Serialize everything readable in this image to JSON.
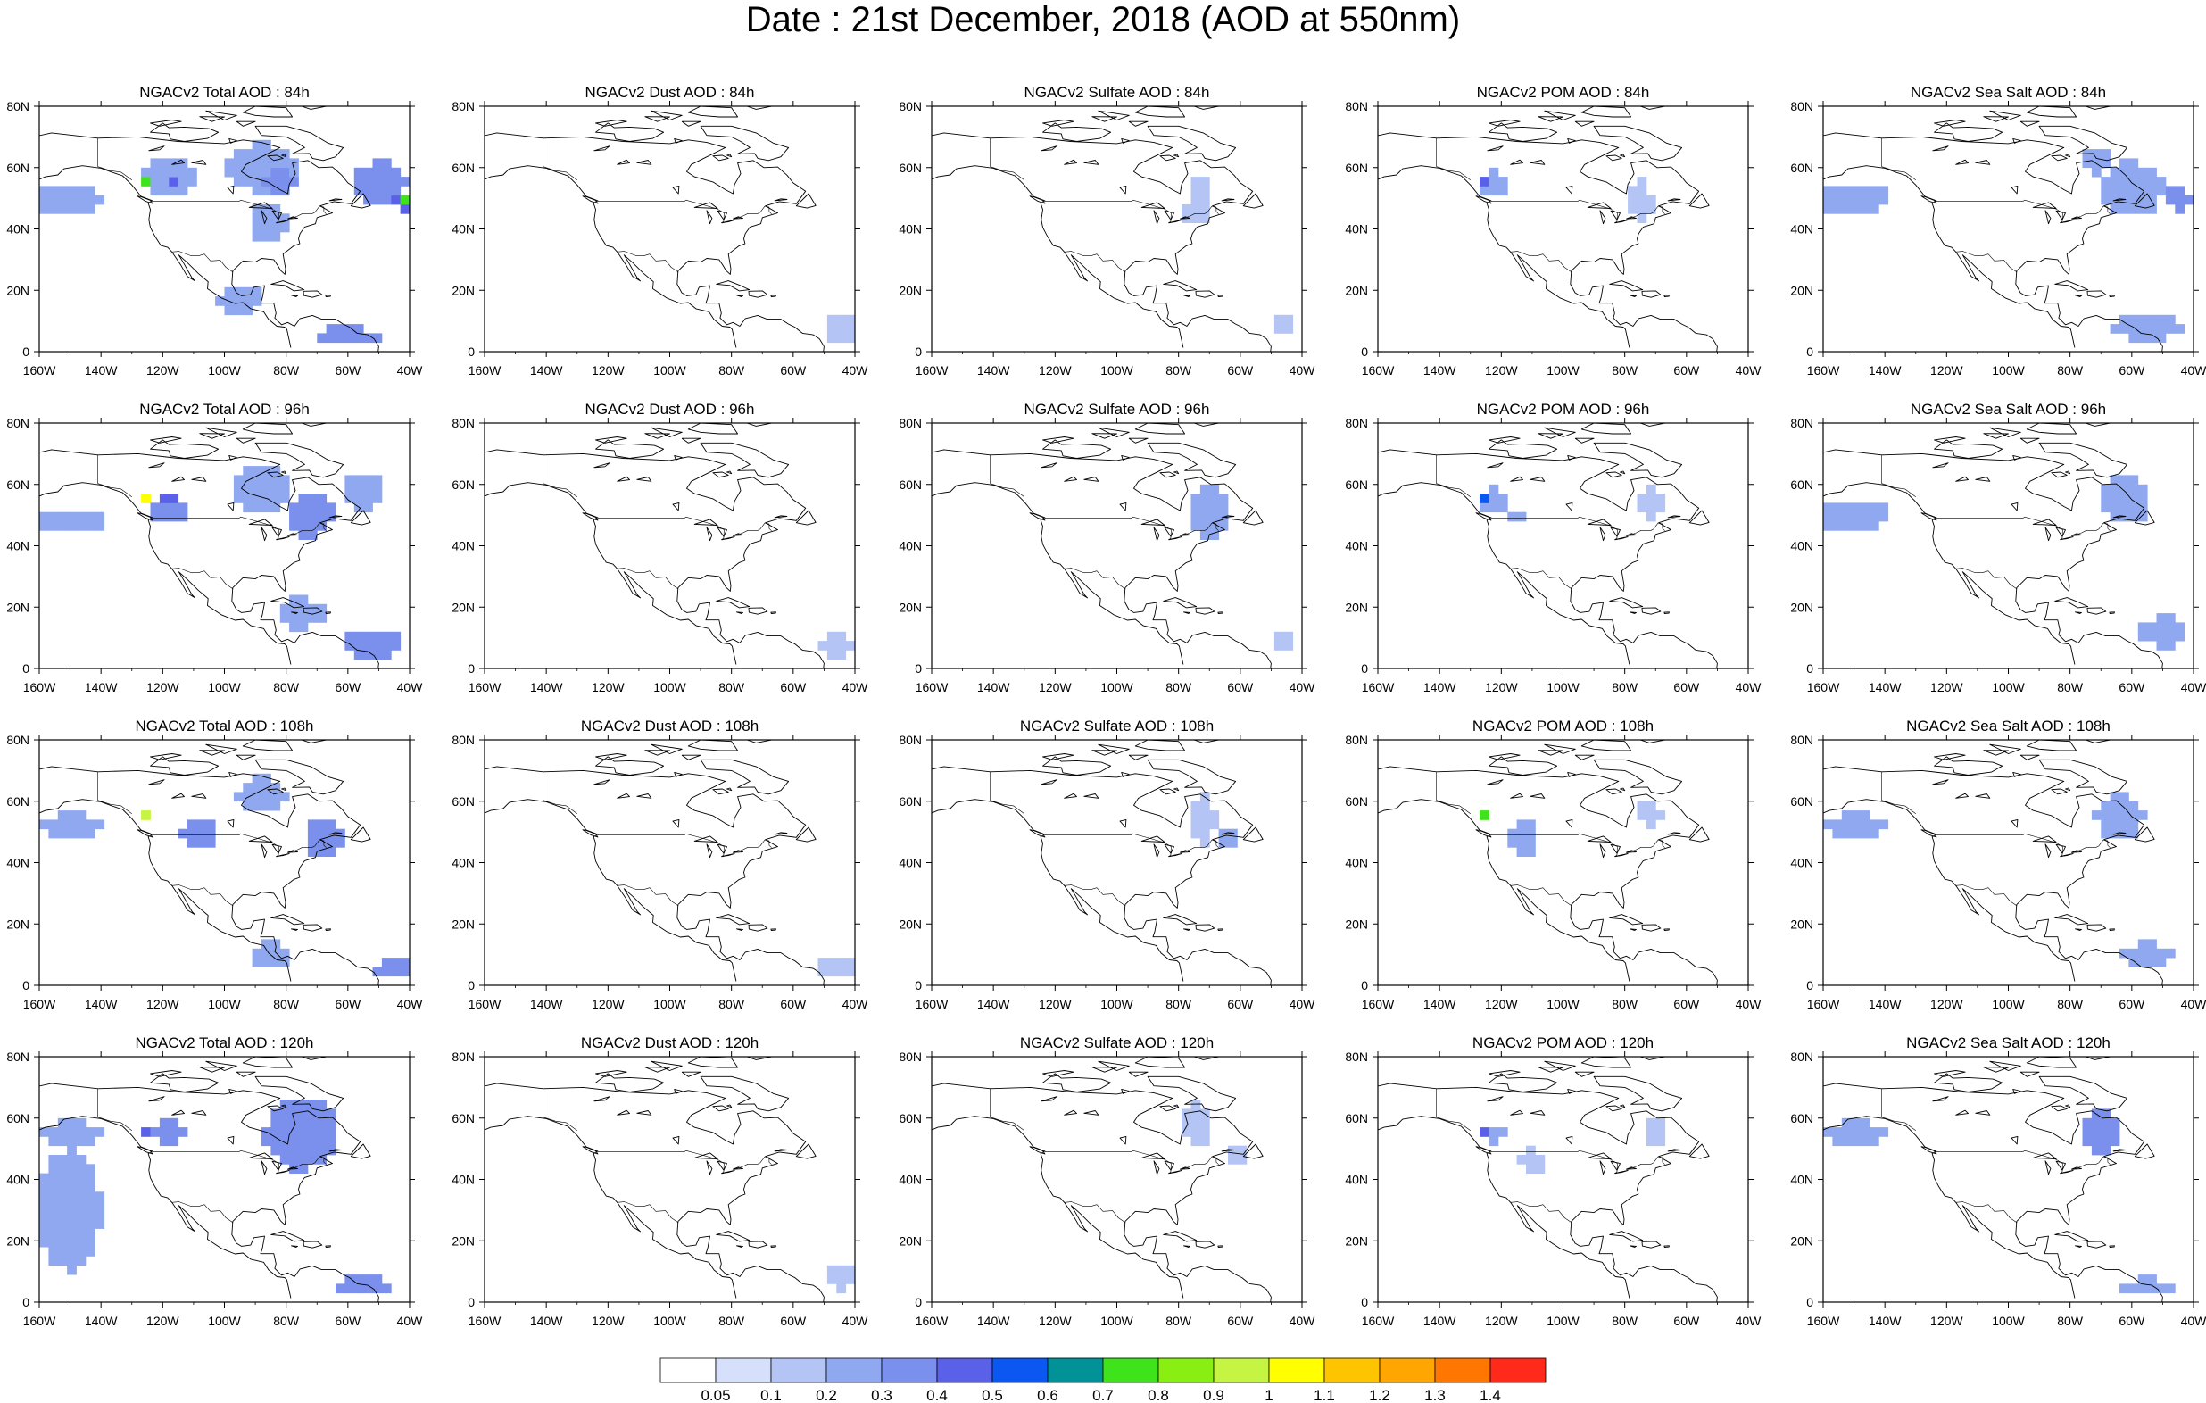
{
  "title": "Date : 21st December, 2018 (AOD at 550nm)",
  "axes": {
    "x_ticks": [
      "160W",
      "140W",
      "120W",
      "100W",
      "80W",
      "60W",
      "40W"
    ],
    "y_ticks": [
      "0",
      "20N",
      "40N",
      "60N",
      "80N"
    ]
  },
  "colorbar": {
    "labels": [
      "0.05",
      "0.1",
      "0.2",
      "0.3",
      "0.4",
      "0.5",
      "0.6",
      "0.7",
      "0.8",
      "0.9",
      "1",
      "1.1",
      "1.2",
      "1.3",
      "1.4"
    ],
    "colors": [
      "#ffffff",
      "#d6e0fb",
      "#b4c4f5",
      "#8fa8f0",
      "#7a90ec",
      "#5a61e8",
      "#0a57f2",
      "#009296",
      "#3ee31c",
      "#89ef12",
      "#c5f542",
      "#ffff00",
      "#ffc400",
      "#ffa600",
      "#ff7700",
      "#ff2a1a"
    ]
  },
  "chart_data": {
    "type": "heatmap",
    "variable": "AOD at 550nm",
    "date": "21st December, 2018",
    "xlim": [
      -160,
      -40
    ],
    "ylim": [
      0,
      80
    ],
    "panels": [
      {
        "title": "NGACv2 Total AOD : 84h",
        "species": "Total",
        "lead_hours": 84,
        "max_aod": 0.7
      },
      {
        "title": "NGACv2 Dust AOD : 84h",
        "species": "Dust",
        "lead_hours": 84,
        "max_aod": 0.1
      },
      {
        "title": "NGACv2 Sulfate AOD : 84h",
        "species": "Sulfate",
        "lead_hours": 84,
        "max_aod": 0.1
      },
      {
        "title": "NGACv2 POM AOD : 84h",
        "species": "POM",
        "lead_hours": 84,
        "max_aod": 0.4
      },
      {
        "title": "NGACv2 Sea Salt AOD : 84h",
        "species": "Sea Salt",
        "lead_hours": 84,
        "max_aod": 0.5
      },
      {
        "title": "NGACv2 Total AOD : 96h",
        "species": "Total",
        "lead_hours": 96,
        "max_aod": 1.0
      },
      {
        "title": "NGACv2 Dust AOD : 96h",
        "species": "Dust",
        "lead_hours": 96,
        "max_aod": 0.1
      },
      {
        "title": "NGACv2 Sulfate AOD : 96h",
        "species": "Sulfate",
        "lead_hours": 96,
        "max_aod": 0.2
      },
      {
        "title": "NGACv2 POM AOD : 96h",
        "species": "POM",
        "lead_hours": 96,
        "max_aod": 0.5
      },
      {
        "title": "NGACv2 Sea Salt AOD : 96h",
        "species": "Sea Salt",
        "lead_hours": 96,
        "max_aod": 0.2
      },
      {
        "title": "NGACv2 Total AOD : 108h",
        "species": "Total",
        "lead_hours": 108,
        "max_aod": 0.9
      },
      {
        "title": "NGACv2 Dust AOD : 108h",
        "species": "Dust",
        "lead_hours": 108,
        "max_aod": 0.1
      },
      {
        "title": "NGACv2 Sulfate AOD : 108h",
        "species": "Sulfate",
        "lead_hours": 108,
        "max_aod": 0.2
      },
      {
        "title": "NGACv2 POM AOD : 108h",
        "species": "POM",
        "lead_hours": 108,
        "max_aod": 0.7
      },
      {
        "title": "NGACv2 Sea Salt AOD : 108h",
        "species": "Sea Salt",
        "lead_hours": 108,
        "max_aod": 0.2
      },
      {
        "title": "NGACv2 Total AOD : 120h",
        "species": "Total",
        "lead_hours": 120,
        "max_aod": 0.4
      },
      {
        "title": "NGACv2 Dust AOD : 120h",
        "species": "Dust",
        "lead_hours": 120,
        "max_aod": 0.1
      },
      {
        "title": "NGACv2 Sulfate AOD : 120h",
        "species": "Sulfate",
        "lead_hours": 120,
        "max_aod": 0.1
      },
      {
        "title": "NGACv2 POM AOD : 120h",
        "species": "POM",
        "lead_hours": 120,
        "max_aod": 0.4
      },
      {
        "title": "NGACv2 Sea Salt  AOD : 120h",
        "species": "Sea Salt",
        "lead_hours": 120,
        "max_aod": 0.3
      }
    ],
    "features": [
      {
        "species": "Total",
        "lead_hours": 84,
        "blobs": [
          {
            "lon": -152,
            "lat": 50,
            "rlon": 12,
            "rlat": 5,
            "aod": 0.2
          },
          {
            "lon": -118,
            "lat": 57,
            "rlon": 10,
            "rlat": 6,
            "aod": 0.2
          },
          {
            "lon": -88,
            "lat": 60,
            "rlon": 12,
            "rlat": 8,
            "aod": 0.2
          },
          {
            "lon": -82,
            "lat": 55,
            "rlon": 5,
            "rlat": 4,
            "aod": 0.3
          },
          {
            "lon": -86,
            "lat": 42,
            "rlon": 6,
            "rlat": 6,
            "aod": 0.2
          },
          {
            "lon": -50,
            "lat": 55,
            "rlon": 9,
            "rlat": 7,
            "aod": 0.3
          },
          {
            "lon": -42,
            "lat": 49,
            "rlon": 3,
            "rlat": 3,
            "aod": 0.4
          },
          {
            "lon": -42,
            "lat": 49,
            "rlon": 1.2,
            "rlat": 1.2,
            "aod": 0.7
          },
          {
            "lon": -125,
            "lat": 55,
            "rlon": 2,
            "rlat": 2,
            "aod": 0.5
          },
          {
            "lon": -125,
            "lat": 55,
            "rlon": 0.8,
            "rlat": 0.8,
            "aod": 0.7
          },
          {
            "lon": -117,
            "lat": 55,
            "rlon": 2,
            "rlat": 2,
            "aod": 0.4
          },
          {
            "lon": -60,
            "lat": 5,
            "rlon": 10,
            "rlat": 3,
            "aod": 0.3
          },
          {
            "lon": -95,
            "lat": 17,
            "rlon": 8,
            "rlat": 4,
            "aod": 0.2
          }
        ]
      },
      {
        "species": "Total",
        "lead_hours": 96,
        "blobs": [
          {
            "lon": -150,
            "lat": 48,
            "rlon": 12,
            "rlat": 4,
            "aod": 0.2
          },
          {
            "lon": -118,
            "lat": 52,
            "rlon": 6,
            "rlat": 5,
            "aod": 0.3
          },
          {
            "lon": -88,
            "lat": 58,
            "rlon": 10,
            "rlat": 8,
            "aod": 0.2
          },
          {
            "lon": -72,
            "lat": 50,
            "rlon": 7,
            "rlat": 7,
            "aod": 0.3
          },
          {
            "lon": -55,
            "lat": 58,
            "rlon": 6,
            "rlat": 6,
            "aod": 0.2
          },
          {
            "lon": -125,
            "lat": 55,
            "rlon": 2,
            "rlat": 2,
            "aod": 0.5
          },
          {
            "lon": -125,
            "lat": 55,
            "rlon": 0.8,
            "rlat": 0.8,
            "aod": 1.0
          },
          {
            "lon": -118,
            "lat": 56,
            "rlon": 2,
            "rlat": 2,
            "aod": 0.4
          },
          {
            "lon": -52,
            "lat": 8,
            "rlon": 10,
            "rlat": 4,
            "aod": 0.3
          },
          {
            "lon": -75,
            "lat": 18,
            "rlon": 8,
            "rlat": 5,
            "aod": 0.2
          }
        ]
      },
      {
        "species": "Total",
        "lead_hours": 108,
        "blobs": [
          {
            "lon": -150,
            "lat": 52,
            "rlon": 10,
            "rlat": 4,
            "aod": 0.2
          },
          {
            "lon": -108,
            "lat": 50,
            "rlon": 6,
            "rlat": 5,
            "aod": 0.3
          },
          {
            "lon": -88,
            "lat": 62,
            "rlon": 8,
            "rlat": 6,
            "aod": 0.2
          },
          {
            "lon": -68,
            "lat": 48,
            "rlon": 6,
            "rlat": 7,
            "aod": 0.3
          },
          {
            "lon": -125,
            "lat": 55,
            "rlon": 2,
            "rlat": 2,
            "aod": 0.5
          },
          {
            "lon": -125,
            "lat": 55,
            "rlon": 0.8,
            "rlat": 0.8,
            "aod": 0.9
          },
          {
            "lon": -45,
            "lat": 5,
            "rlon": 8,
            "rlat": 3,
            "aod": 0.3
          },
          {
            "lon": -85,
            "lat": 10,
            "rlon": 6,
            "rlat": 4,
            "aod": 0.2
          }
        ]
      },
      {
        "species": "Total",
        "lead_hours": 120,
        "blobs": [
          {
            "lon": -150,
            "lat": 30,
            "rlon": 10,
            "rlat": 20,
            "aod": 0.2
          },
          {
            "lon": -150,
            "lat": 55,
            "rlon": 10,
            "rlat": 4,
            "aod": 0.2
          },
          {
            "lon": -118,
            "lat": 56,
            "rlon": 5,
            "rlat": 4,
            "aod": 0.3
          },
          {
            "lon": -75,
            "lat": 55,
            "rlon": 12,
            "rlat": 12,
            "aod": 0.3
          },
          {
            "lon": -125,
            "lat": 55,
            "rlon": 2,
            "rlat": 2,
            "aod": 0.4
          },
          {
            "lon": -55,
            "lat": 5,
            "rlon": 10,
            "rlat": 3,
            "aod": 0.3
          }
        ]
      },
      {
        "species": "Dust",
        "lead_hours": 84,
        "blobs": [
          {
            "lon": -44,
            "lat": 8,
            "rlon": 5,
            "rlat": 5,
            "aod": 0.1
          }
        ]
      },
      {
        "species": "Dust",
        "lead_hours": 96,
        "blobs": [
          {
            "lon": -46,
            "lat": 8,
            "rlon": 5,
            "rlat": 4,
            "aod": 0.1
          }
        ]
      },
      {
        "species": "Dust",
        "lead_hours": 108,
        "blobs": [
          {
            "lon": -46,
            "lat": 6,
            "rlon": 5,
            "rlat": 4,
            "aod": 0.1
          }
        ]
      },
      {
        "species": "Dust",
        "lead_hours": 120,
        "blobs": [
          {
            "lon": -44,
            "lat": 8,
            "rlon": 5,
            "rlat": 4,
            "aod": 0.1
          }
        ]
      },
      {
        "species": "Sulfate",
        "lead_hours": 84,
        "blobs": [
          {
            "lon": -73,
            "lat": 50,
            "rlon": 4,
            "rlat": 8,
            "aod": 0.1
          },
          {
            "lon": -76,
            "lat": 44,
            "rlon": 3,
            "rlat": 3,
            "aod": 0.1
          },
          {
            "lon": -46,
            "lat": 8,
            "rlon": 4,
            "rlat": 3,
            "aod": 0.1
          }
        ]
      },
      {
        "species": "Sulfate",
        "lead_hours": 96,
        "blobs": [
          {
            "lon": -70,
            "lat": 52,
            "rlon": 6,
            "rlat": 9,
            "aod": 0.2
          },
          {
            "lon": -46,
            "lat": 8,
            "rlon": 4,
            "rlat": 3,
            "aod": 0.1
          }
        ]
      },
      {
        "species": "Sulfate",
        "lead_hours": 108,
        "blobs": [
          {
            "lon": -72,
            "lat": 54,
            "rlon": 4,
            "rlat": 8,
            "aod": 0.1
          },
          {
            "lon": -65,
            "lat": 48,
            "rlon": 3,
            "rlat": 3,
            "aod": 0.2
          }
        ]
      },
      {
        "species": "Sulfate",
        "lead_hours": 120,
        "blobs": [
          {
            "lon": -74,
            "lat": 58,
            "rlon": 4,
            "rlat": 8,
            "aod": 0.1
          },
          {
            "lon": -62,
            "lat": 48,
            "rlon": 4,
            "rlat": 3,
            "aod": 0.1
          }
        ]
      },
      {
        "species": "POM",
        "lead_hours": 84,
        "blobs": [
          {
            "lon": -122,
            "lat": 55,
            "rlon": 5,
            "rlat": 4,
            "aod": 0.2
          },
          {
            "lon": -125,
            "lat": 55,
            "rlon": 1.5,
            "rlat": 1.5,
            "aod": 0.4
          },
          {
            "lon": -115,
            "lat": 51,
            "rlon": 2,
            "rlat": 2,
            "aod": 0.2
          },
          {
            "lon": -75,
            "lat": 49,
            "rlon": 4,
            "rlat": 7,
            "aod": 0.1
          }
        ]
      },
      {
        "species": "POM",
        "lead_hours": 96,
        "blobs": [
          {
            "lon": -122,
            "lat": 55,
            "rlon": 5,
            "rlat": 4,
            "aod": 0.2
          },
          {
            "lon": -125,
            "lat": 55,
            "rlon": 1.5,
            "rlat": 1.5,
            "aod": 0.5
          },
          {
            "lon": -115,
            "lat": 50,
            "rlon": 2,
            "rlat": 2,
            "aod": 0.2
          },
          {
            "lon": -72,
            "lat": 54,
            "rlon": 4,
            "rlat": 5,
            "aod": 0.1
          }
        ]
      },
      {
        "species": "POM",
        "lead_hours": 108,
        "blobs": [
          {
            "lon": -113,
            "lat": 48,
            "rlon": 4,
            "rlat": 7,
            "aod": 0.2
          },
          {
            "lon": -125,
            "lat": 55,
            "rlon": 1.5,
            "rlat": 1.5,
            "aod": 0.7
          },
          {
            "lon": -72,
            "lat": 56,
            "rlon": 4,
            "rlat": 4,
            "aod": 0.1
          }
        ]
      },
      {
        "species": "POM",
        "lead_hours": 120,
        "blobs": [
          {
            "lon": -122,
            "lat": 55,
            "rlon": 3,
            "rlat": 3,
            "aod": 0.2
          },
          {
            "lon": -125,
            "lat": 55,
            "rlon": 1.5,
            "rlat": 1.5,
            "aod": 0.4
          },
          {
            "lon": -110,
            "lat": 46,
            "rlon": 4,
            "rlat": 4,
            "aod": 0.1
          },
          {
            "lon": -70,
            "lat": 55,
            "rlon": 4,
            "rlat": 4,
            "aod": 0.1
          }
        ]
      },
      {
        "species": "Sea Salt",
        "lead_hours": 84,
        "blobs": [
          {
            "lon": -150,
            "lat": 50,
            "rlon": 12,
            "rlat": 5,
            "aod": 0.2
          },
          {
            "lon": -60,
            "lat": 53,
            "rlon": 10,
            "rlat": 9,
            "aod": 0.2
          },
          {
            "lon": -45,
            "lat": 50,
            "rlon": 4,
            "rlat": 4,
            "aod": 0.3
          },
          {
            "lon": -43,
            "lat": 50,
            "rlon": 1.5,
            "rlat": 1.5,
            "aod": 0.5
          },
          {
            "lon": -55,
            "lat": 8,
            "rlon": 12,
            "rlat": 4,
            "aod": 0.2
          },
          {
            "lon": -72,
            "lat": 62,
            "rlon": 5,
            "rlat": 4,
            "aod": 0.2
          }
        ]
      },
      {
        "species": "Sea Salt",
        "lead_hours": 96,
        "blobs": [
          {
            "lon": -150,
            "lat": 50,
            "rlon": 12,
            "rlat": 5,
            "aod": 0.2
          },
          {
            "lon": -62,
            "lat": 55,
            "rlon": 8,
            "rlat": 8,
            "aod": 0.2
          },
          {
            "lon": -50,
            "lat": 12,
            "rlon": 8,
            "rlat": 5,
            "aod": 0.2
          }
        ]
      },
      {
        "species": "Sea Salt",
        "lead_hours": 108,
        "blobs": [
          {
            "lon": -150,
            "lat": 52,
            "rlon": 10,
            "rlat": 4,
            "aod": 0.2
          },
          {
            "lon": -64,
            "lat": 55,
            "rlon": 8,
            "rlat": 7,
            "aod": 0.2
          },
          {
            "lon": -55,
            "lat": 10,
            "rlon": 8,
            "rlat": 4,
            "aod": 0.2
          }
        ]
      },
      {
        "species": "Sea Salt",
        "lead_hours": 120,
        "blobs": [
          {
            "lon": -150,
            "lat": 55,
            "rlon": 10,
            "rlat": 4,
            "aod": 0.2
          },
          {
            "lon": -70,
            "lat": 55,
            "rlon": 6,
            "rlat": 8,
            "aod": 0.3
          },
          {
            "lon": -55,
            "lat": 5,
            "rlon": 8,
            "rlat": 3,
            "aod": 0.2
          }
        ]
      }
    ]
  }
}
